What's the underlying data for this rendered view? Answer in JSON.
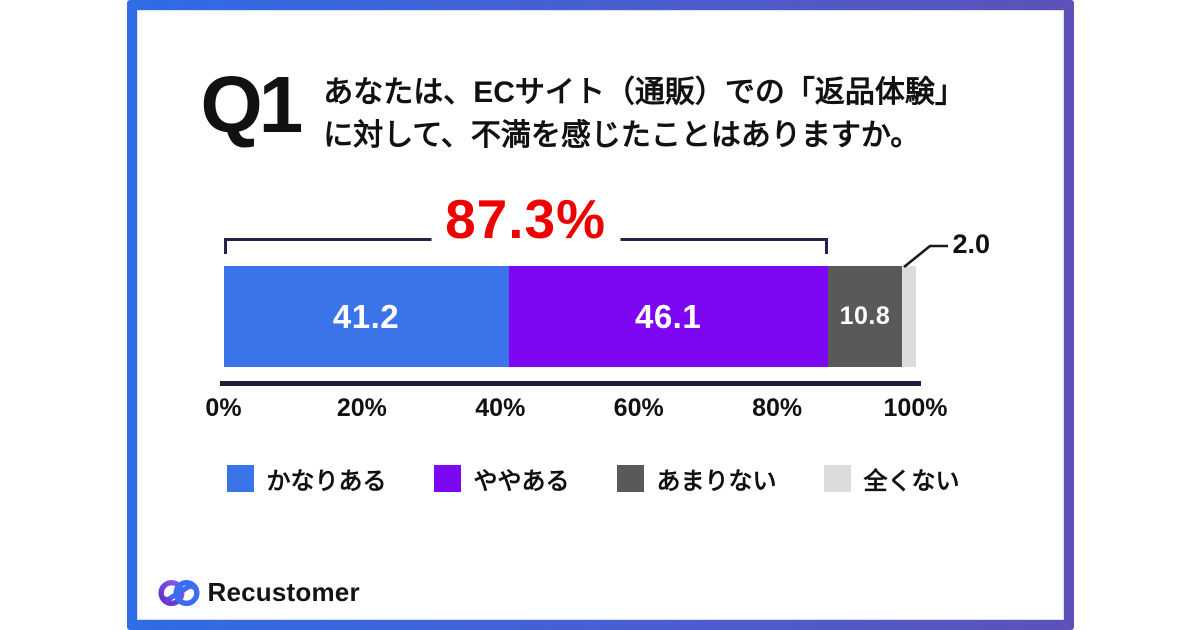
{
  "question": {
    "number": "Q1",
    "line1": "あなたは、ECサイト（通販）での「返品体験」",
    "line2": "に対して、不満を感じたことはありますか。"
  },
  "chart_data": {
    "type": "bar",
    "stacked": true,
    "orientation": "horizontal",
    "unit": "%",
    "series": [
      {
        "name": "かなりある",
        "value": 41.2,
        "color": "#3b74e8",
        "label": "41.2"
      },
      {
        "name": "ややある",
        "value": 46.1,
        "color": "#7d07f2",
        "label": "46.1"
      },
      {
        "name": "あまりない",
        "value": 10.8,
        "color": "#595959",
        "label": "10.8"
      },
      {
        "name": "全くない",
        "value": 2.0,
        "color": "#dcdcdc",
        "label_outside": true
      }
    ],
    "highlight": {
      "label": "87.3%",
      "value": 87.3,
      "color": "#ee0000"
    },
    "callout_label": "2.0",
    "x_ticks": [
      "0%",
      "20%",
      "40%",
      "60%",
      "80%",
      "100%"
    ],
    "x_range": [
      0,
      100
    ],
    "grid": false,
    "legend_position": "bottom"
  },
  "colors": {
    "frame_gradient_start": "#2f6ce6",
    "frame_gradient_end": "#5c52b8",
    "axis": "#1d1d42",
    "bracket": "#23234d",
    "highlight_red": "#ee0000"
  },
  "footer": {
    "brand": "Recustomer"
  }
}
